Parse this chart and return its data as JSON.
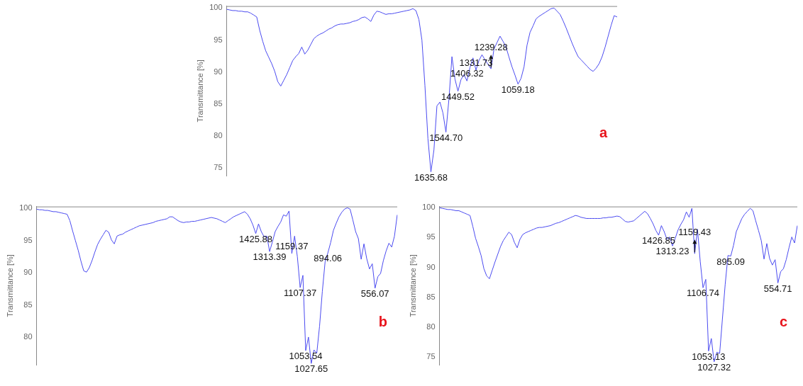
{
  "chart_data": [
    {
      "type": "line",
      "ylabel": "Transmittance [%]",
      "ylim": [
        73.8,
        100.3
      ],
      "yticks": [
        75,
        80,
        85,
        90,
        95,
        100
      ],
      "tick_labels": "y",
      "grid": false,
      "legend": false,
      "marker": "none",
      "categories": [
        null,
        null,
        null,
        null,
        null,
        null,
        null,
        null,
        null,
        null,
        null,
        null,
        null,
        null,
        null,
        null,
        null,
        null,
        null,
        null,
        null,
        null,
        null,
        null,
        null,
        null,
        null,
        null,
        null,
        null,
        null,
        null,
        null,
        null,
        null,
        null,
        null,
        null,
        null,
        null,
        null,
        null,
        null,
        null,
        null,
        null,
        null,
        null,
        null,
        null,
        null,
        null,
        null,
        null,
        null,
        null,
        null,
        null,
        null,
        null,
        null,
        null,
        null,
        null,
        null,
        null,
        null,
        null,
        null,
        null,
        null,
        null,
        null,
        null,
        null,
        null,
        null,
        null,
        null,
        null,
        null,
        null,
        null,
        null,
        null,
        null,
        null,
        null,
        null,
        null,
        null,
        null,
        null,
        null,
        null,
        null,
        null,
        null,
        null,
        null,
        null,
        null,
        null,
        null,
        null,
        null,
        null,
        null,
        null,
        null,
        null,
        null,
        null,
        null,
        null,
        null,
        null,
        null,
        null,
        null,
        null,
        null,
        null,
        null,
        null,
        null,
        null,
        null,
        null,
        null,
        null
      ],
      "series": [
        {
          "color": "#4b4bf0",
          "values": [
            99.8,
            99.7,
            99.6,
            99.6,
            99.5,
            99.5,
            99.4,
            99.4,
            99.2,
            98.9,
            98.6,
            96.5,
            94.8,
            93.3,
            92.3,
            91.3,
            90.1,
            88.5,
            87.8,
            88.7,
            89.6,
            90.7,
            91.8,
            92.4,
            92.9,
            93.9,
            92.8,
            93.4,
            94.3,
            95.2,
            95.6,
            95.9,
            96.1,
            96.4,
            96.7,
            96.9,
            97.2,
            97.4,
            97.5,
            97.5,
            97.6,
            97.7,
            97.9,
            98.0,
            98.2,
            98.5,
            98.6,
            98.3,
            97.9,
            98.9,
            99.5,
            99.4,
            99.2,
            99.0,
            99.1,
            99.1,
            99.2,
            99.3,
            99.4,
            99.5,
            99.6,
            99.7,
            99.9,
            99.6,
            98.2,
            95.0,
            87.9,
            79.6,
            74.4,
            77.8,
            84.7,
            85.3,
            83.6,
            80.6,
            85.8,
            92.4,
            88.9,
            87.0,
            88.8,
            89.6,
            88.6,
            90.7,
            92.2,
            90.3,
            91.8,
            92.7,
            91.9,
            91.2,
            90.5,
            93.6,
            94.6,
            95.6,
            94.8,
            93.9,
            92.3,
            90.8,
            89.5,
            88.1,
            89.0,
            90.8,
            94.2,
            96.2,
            97.2,
            98.3,
            98.7,
            99.0,
            99.3,
            99.6,
            99.9,
            100.0,
            99.5,
            99.0,
            98.0,
            96.9,
            95.7,
            94.5,
            93.4,
            92.4,
            91.9,
            91.4,
            90.9,
            90.4,
            90.1,
            90.6,
            91.3,
            92.4,
            93.9,
            95.6,
            97.3,
            98.8,
            98.6
          ]
        }
      ],
      "annotations": [
        "a",
        {
          "text": "1635.68",
          "y": 74.4
        },
        {
          "text": "1544.70",
          "y": 80.6
        },
        {
          "text": "1449.52",
          "y": 87.0
        },
        {
          "text": "1406.32",
          "y": 88.6
        },
        {
          "text": "1331.73",
          "y": 90.3
        },
        {
          "text": "1239.28",
          "y": 90.5
        },
        {
          "text": "1059.18",
          "y": 88.1
        }
      ]
    },
    {
      "type": "line",
      "ylabel": "Transmittance [%]",
      "ylim": [
        75.7,
        100.3
      ],
      "yticks": [
        80,
        85,
        90,
        95,
        100
      ],
      "tick_labels": "y",
      "grid": false,
      "legend": false,
      "marker": "none",
      "categories": [
        null,
        null,
        null,
        null,
        null,
        null,
        null,
        null,
        null,
        null,
        null,
        null,
        null,
        null,
        null,
        null,
        null,
        null,
        null,
        null,
        null,
        null,
        null,
        null,
        null,
        null,
        null,
        null,
        null,
        null,
        null,
        null,
        null,
        null,
        null,
        null,
        null,
        null,
        null,
        null,
        null,
        null,
        null,
        null,
        null,
        null,
        null,
        null,
        null,
        null,
        null,
        null,
        null,
        null,
        null,
        null,
        null,
        null,
        null,
        null,
        null,
        null,
        null,
        null,
        null,
        null,
        null,
        null,
        null,
        null,
        null,
        null,
        null,
        null,
        null,
        null,
        null,
        null,
        null,
        null,
        null,
        null,
        null,
        null,
        null,
        null,
        null,
        null,
        null,
        null,
        null,
        null,
        null,
        null,
        null,
        null,
        null,
        null,
        null,
        null,
        null,
        null,
        null,
        null,
        null,
        null,
        null,
        null,
        null,
        null,
        null,
        null,
        null,
        null,
        null,
        null,
        null,
        null,
        null,
        null,
        null,
        null,
        null,
        null,
        null,
        null,
        null,
        null,
        null,
        null,
        null
      ],
      "series": [
        {
          "color": "#4b4bf0",
          "values": [
            99.9,
            99.8,
            99.8,
            99.7,
            99.7,
            99.6,
            99.5,
            99.5,
            99.4,
            99.3,
            99.2,
            99.1,
            98.1,
            96.5,
            95.0,
            93.5,
            91.8,
            90.3,
            90.1,
            90.8,
            91.9,
            93.2,
            94.4,
            95.2,
            95.9,
            96.6,
            96.3,
            95.1,
            94.5,
            95.7,
            95.9,
            96.0,
            96.3,
            96.5,
            96.7,
            96.9,
            97.1,
            97.3,
            97.4,
            97.5,
            97.6,
            97.7,
            97.8,
            98.0,
            98.1,
            98.2,
            98.3,
            98.4,
            98.7,
            98.7,
            98.4,
            98.1,
            97.9,
            97.8,
            97.9,
            97.9,
            98.0,
            98.0,
            98.1,
            98.2,
            98.3,
            98.4,
            98.5,
            98.6,
            98.5,
            98.4,
            98.2,
            98.0,
            97.8,
            98.1,
            98.4,
            98.7,
            98.9,
            99.1,
            99.3,
            99.5,
            99.1,
            98.4,
            97.4,
            96.1,
            97.6,
            96.4,
            95.6,
            95.7,
            93.3,
            94.8,
            96.4,
            97.2,
            97.9,
            99.0,
            98.8,
            99.6,
            93.0,
            95.7,
            92.5,
            87.7,
            89.6,
            77.9,
            80.0,
            75.9,
            78.0,
            77.5,
            81.7,
            87.1,
            91.7,
            93.1,
            94.7,
            96.6,
            97.7,
            98.7,
            99.4,
            99.9,
            100.1,
            99.9,
            98.2,
            96.4,
            95.3,
            92.1,
            94.5,
            92.2,
            90.6,
            91.4,
            87.6,
            89.4,
            89.9,
            91.9,
            93.4,
            94.6,
            94.0,
            95.7,
            99.0
          ]
        }
      ],
      "annotations": [
        "b",
        {
          "text": "1425.88",
          "y": 96.1
        },
        {
          "text": "1313.39",
          "y": 93.3
        },
        {
          "text": "1159.37",
          "y": 93.0
        },
        {
          "text": "1107.37",
          "y": 87.7
        },
        {
          "text": "1053.54",
          "y": 77.9
        },
        {
          "text": "1027.65",
          "y": 75.9
        },
        {
          "text": "894.06",
          "y": 93.1
        },
        {
          "text": "556.07",
          "y": 87.6
        }
      ]
    },
    {
      "type": "line",
      "ylabel": "Transmittance [%]",
      "ylim": [
        73.7,
        100.2
      ],
      "yticks": [
        75,
        80,
        85,
        90,
        95,
        100
      ],
      "tick_labels": "y",
      "grid": false,
      "legend": false,
      "marker": "none",
      "categories": [
        null,
        null,
        null,
        null,
        null,
        null,
        null,
        null,
        null,
        null,
        null,
        null,
        null,
        null,
        null,
        null,
        null,
        null,
        null,
        null,
        null,
        null,
        null,
        null,
        null,
        null,
        null,
        null,
        null,
        null,
        null,
        null,
        null,
        null,
        null,
        null,
        null,
        null,
        null,
        null,
        null,
        null,
        null,
        null,
        null,
        null,
        null,
        null,
        null,
        null,
        null,
        null,
        null,
        null,
        null,
        null,
        null,
        null,
        null,
        null,
        null,
        null,
        null,
        null,
        null,
        null,
        null,
        null,
        null,
        null,
        null,
        null,
        null,
        null,
        null,
        null,
        null,
        null,
        null,
        null,
        null,
        null,
        null,
        null,
        null,
        null,
        null,
        null,
        null,
        null,
        null,
        null,
        null,
        null,
        null,
        null,
        null,
        null,
        null,
        null,
        null,
        null,
        null,
        null,
        null,
        null,
        null,
        null,
        null,
        null,
        null,
        null,
        null,
        null,
        null,
        null,
        null,
        null,
        null,
        null,
        null,
        null,
        null,
        null,
        null,
        null,
        null,
        null,
        null,
        null
      ],
      "series": [
        {
          "color": "#4b4bf0",
          "values": [
            100.0,
            99.9,
            99.8,
            99.7,
            99.7,
            99.6,
            99.5,
            99.5,
            99.3,
            99.1,
            98.9,
            98.7,
            96.9,
            94.9,
            93.5,
            92.0,
            89.8,
            88.6,
            88.1,
            89.5,
            90.9,
            92.2,
            93.5,
            94.5,
            95.2,
            95.9,
            95.5,
            94.2,
            93.3,
            94.7,
            95.5,
            95.8,
            96.0,
            96.2,
            96.4,
            96.6,
            96.7,
            96.7,
            96.8,
            96.9,
            97.0,
            97.2,
            97.4,
            97.5,
            97.7,
            97.9,
            98.1,
            98.3,
            98.5,
            98.7,
            98.6,
            98.4,
            98.3,
            98.2,
            98.2,
            98.2,
            98.2,
            98.2,
            98.2,
            98.3,
            98.3,
            98.4,
            98.4,
            98.5,
            98.6,
            98.5,
            98.1,
            97.7,
            97.6,
            97.7,
            97.8,
            98.2,
            98.6,
            99.0,
            99.4,
            99.0,
            98.2,
            97.3,
            96.2,
            95.4,
            97.0,
            96.0,
            94.7,
            95.1,
            93.6,
            94.9,
            96.3,
            97.2,
            98.0,
            99.3,
            98.4,
            99.9,
            92.3,
            96.4,
            91.0,
            86.6,
            88.0,
            76.0,
            78.1,
            74.2,
            75.8,
            75.6,
            81.4,
            87.2,
            92.0,
            91.9,
            93.7,
            96.0,
            97.1,
            98.2,
            98.9,
            99.4,
            99.9,
            99.5,
            97.8,
            96.2,
            94.5,
            91.4,
            94.0,
            91.5,
            90.4,
            91.3,
            87.4,
            89.3,
            89.8,
            91.3,
            93.3,
            95.1,
            94.1,
            97.0
          ]
        }
      ],
      "annotations": [
        "c",
        {
          "text": "1426.85",
          "y": 95.4
        },
        {
          "text": "1313.23",
          "y": 93.6
        },
        {
          "text": "1159.43",
          "y": 92.3
        },
        {
          "text": "1106.74",
          "y": 86.6
        },
        {
          "text": "1053.13",
          "y": 76.0
        },
        {
          "text": "1027.32",
          "y": 74.2
        },
        {
          "text": "895.09",
          "y": 91.9
        },
        {
          "text": "554.71",
          "y": 87.4
        }
      ]
    }
  ]
}
